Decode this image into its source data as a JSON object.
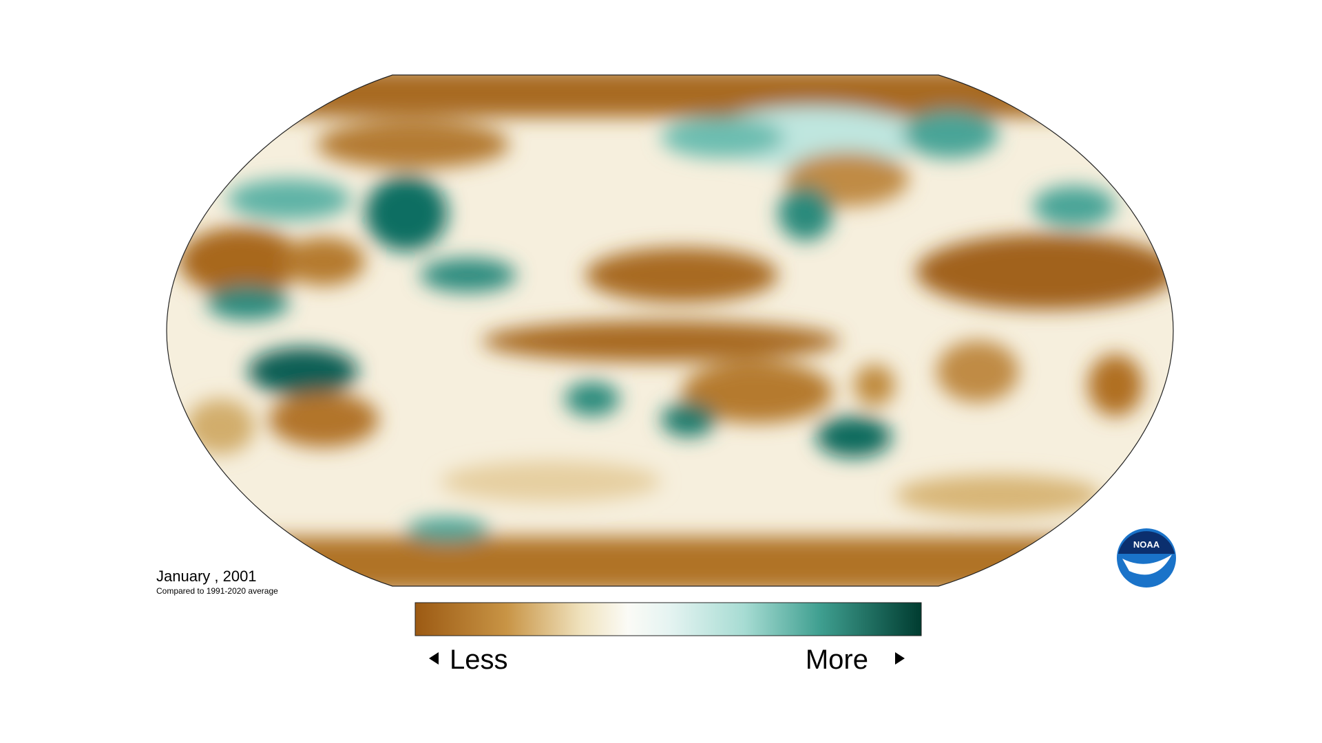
{
  "title": "January , 2001",
  "subtitle": "Compared to 1991-2020 average",
  "legend": {
    "low_label": "Less",
    "high_label": "More"
  },
  "logo": {
    "text": "NOAA"
  }
}
